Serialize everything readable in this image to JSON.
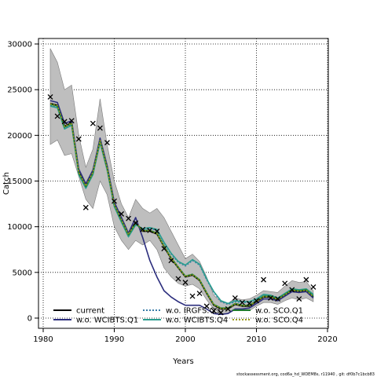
{
  "chart_data": {
    "type": "line",
    "title": "",
    "xlabel": "Years",
    "ylabel": "Catch",
    "xlim": [
      1980,
      2020
    ],
    "ylim": [
      0,
      30000
    ],
    "x_ticks": [
      "1980",
      "1990",
      "2000",
      "2010",
      "2020"
    ],
    "y_ticks": [
      "0",
      "5000",
      "10000",
      "15000",
      "20000",
      "25000",
      "30000"
    ],
    "grid": "dotted",
    "legend": "bottom",
    "years": [
      1981,
      1982,
      1983,
      1984,
      1985,
      1986,
      1987,
      1988,
      1989,
      1990,
      1991,
      1992,
      1993,
      1994,
      1995,
      1996,
      1997,
      1998,
      1999,
      2000,
      2001,
      2002,
      2003,
      2004,
      2005,
      2006,
      2007,
      2008,
      2009,
      2010,
      2011,
      2012,
      2013,
      2014,
      2015,
      2016,
      2017,
      2018
    ],
    "band": {
      "name": "confidence interval",
      "color": "#bebebe",
      "lower": [
        19000,
        19500,
        17800,
        18000,
        15500,
        13000,
        12000,
        15000,
        13500,
        10000,
        8500,
        7500,
        8500,
        8000,
        8500,
        7500,
        5500,
        4500,
        3800,
        3500,
        3700,
        3200,
        2000,
        1000,
        500,
        500,
        900,
        800,
        800,
        1300,
        1700,
        1700,
        1500,
        1900,
        2200,
        2000,
        2200,
        1800
      ],
      "upper": [
        29500,
        28000,
        25000,
        25500,
        20000,
        16500,
        18500,
        24000,
        19000,
        15000,
        12500,
        11000,
        13000,
        12000,
        11500,
        12000,
        11000,
        9500,
        8000,
        6500,
        7000,
        6200,
        4500,
        2500,
        1800,
        1600,
        2200,
        2000,
        2100,
        2500,
        3000,
        2900,
        2800,
        3500,
        4100,
        3900,
        4000,
        3000
      ]
    },
    "series": [
      {
        "name": "current",
        "color": "#000000",
        "dash": "solid",
        "width": 1.6,
        "values": [
          23500,
          23300,
          21000,
          21400,
          16000,
          14500,
          16000,
          19500,
          16500,
          12500,
          10800,
          9200,
          10500,
          9500,
          9500,
          9200,
          7800,
          6500,
          5500,
          4500,
          4700,
          4100,
          2700,
          1400,
          1000,
          1000,
          1500,
          1300,
          1300,
          1800,
          2300,
          2300,
          2000,
          2500,
          3000,
          2900,
          3000,
          2300
        ]
      },
      {
        "name": "w.o. WCIBTS.Q1",
        "color": "#2b2d7d",
        "dash": "solid",
        "width": 1.6,
        "values": [
          23800,
          23600,
          21300,
          21600,
          16300,
          14700,
          16200,
          19700,
          16700,
          12700,
          11000,
          9300,
          11000,
          8800,
          6300,
          4500,
          3000,
          2300,
          1800,
          1400,
          1400,
          1400,
          1000,
          500,
          400,
          500,
          1000,
          1000,
          1100,
          1600,
          2100,
          2100,
          1900,
          2400,
          2900,
          2800,
          2900,
          2200
        ]
      },
      {
        "name": "w.o. IRGFS.Q3",
        "color": "#3a7ca8",
        "dash": "dotted",
        "width": 1.6,
        "values": [
          23300,
          23100,
          20800,
          21200,
          15800,
          14300,
          15800,
          19300,
          16300,
          12300,
          10600,
          9000,
          10300,
          9700,
          9800,
          9600,
          8200,
          7000,
          6100,
          5700,
          6300,
          5800,
          4200,
          2800,
          1800,
          1500,
          1800,
          1700,
          1700,
          2000,
          2500,
          2400,
          2100,
          2600,
          3100,
          3000,
          3100,
          2500
        ]
      },
      {
        "name": "w.o. WCIBTS.Q4",
        "color": "#2a9d8f",
        "dash": "solid",
        "width": 1.6,
        "values": [
          23200,
          23000,
          20700,
          21100,
          15700,
          14200,
          15700,
          19200,
          16200,
          12200,
          10500,
          8900,
          10200,
          9800,
          9900,
          9700,
          8300,
          7100,
          6200,
          5800,
          6400,
          5900,
          4300,
          2900,
          1900,
          1600,
          1900,
          1800,
          1800,
          2100,
          2600,
          2500,
          2200,
          2700,
          3200,
          3100,
          3200,
          2600
        ]
      },
      {
        "name": "w.o. SCO.Q1",
        "color": "#1f7a2e",
        "dash": "solid",
        "width": 1.6,
        "values": [
          23400,
          23200,
          20900,
          21300,
          15900,
          14400,
          15900,
          19400,
          16400,
          12400,
          10700,
          9100,
          10400,
          9600,
          9600,
          9300,
          7900,
          6600,
          5600,
          4600,
          4800,
          4200,
          2800,
          1500,
          1100,
          1100,
          1600,
          1400,
          1400,
          1900,
          2400,
          2400,
          2100,
          2600,
          3100,
          3000,
          3100,
          2400
        ]
      },
      {
        "name": "w.o. SCO.Q4",
        "color": "#9a9a1a",
        "dash": "dotted",
        "width": 1.6,
        "values": [
          23450,
          23250,
          20950,
          21350,
          15950,
          14450,
          15950,
          19450,
          16450,
          12450,
          10750,
          9150,
          10450,
          9550,
          9550,
          9250,
          7850,
          6550,
          5550,
          4550,
          4750,
          4150,
          2750,
          1450,
          1050,
          1050,
          1550,
          1350,
          1350,
          1850,
          2350,
          2350,
          2050,
          2550,
          3050,
          2950,
          3050,
          2350
        ]
      }
    ],
    "observed": {
      "marker": "x",
      "points": [
        [
          1981,
          24200
        ],
        [
          1982,
          22100
        ],
        [
          1983,
          21500
        ],
        [
          1984,
          21600
        ],
        [
          1985,
          19600
        ],
        [
          1986,
          12100
        ],
        [
          1987,
          21300
        ],
        [
          1988,
          20800
        ],
        [
          1989,
          19200
        ],
        [
          1990,
          12800
        ],
        [
          1991,
          11400
        ],
        [
          1992,
          10900
        ],
        [
          1993,
          10400
        ],
        [
          1994,
          9700
        ],
        [
          1995,
          9600
        ],
        [
          1996,
          9500
        ],
        [
          1997,
          7600
        ],
        [
          1998,
          6300
        ],
        [
          1999,
          4300
        ],
        [
          2000,
          3900
        ],
        [
          2001,
          2400
        ],
        [
          2002,
          2700
        ],
        [
          2003,
          1300
        ],
        [
          2004,
          800
        ],
        [
          2005,
          600
        ],
        [
          2006,
          1000
        ],
        [
          2007,
          2200
        ],
        [
          2008,
          1700
        ],
        [
          2009,
          1600
        ],
        [
          2010,
          1900
        ],
        [
          2011,
          4200
        ],
        [
          2012,
          2200
        ],
        [
          2013,
          2100
        ],
        [
          2014,
          3800
        ],
        [
          2015,
          3100
        ],
        [
          2016,
          2100
        ],
        [
          2017,
          4200
        ],
        [
          2018,
          3400
        ]
      ]
    }
  },
  "footer": "stockassessment.org, cod6a_hd_WDEM8s, r11940 , git: df0b7c1bcb83"
}
